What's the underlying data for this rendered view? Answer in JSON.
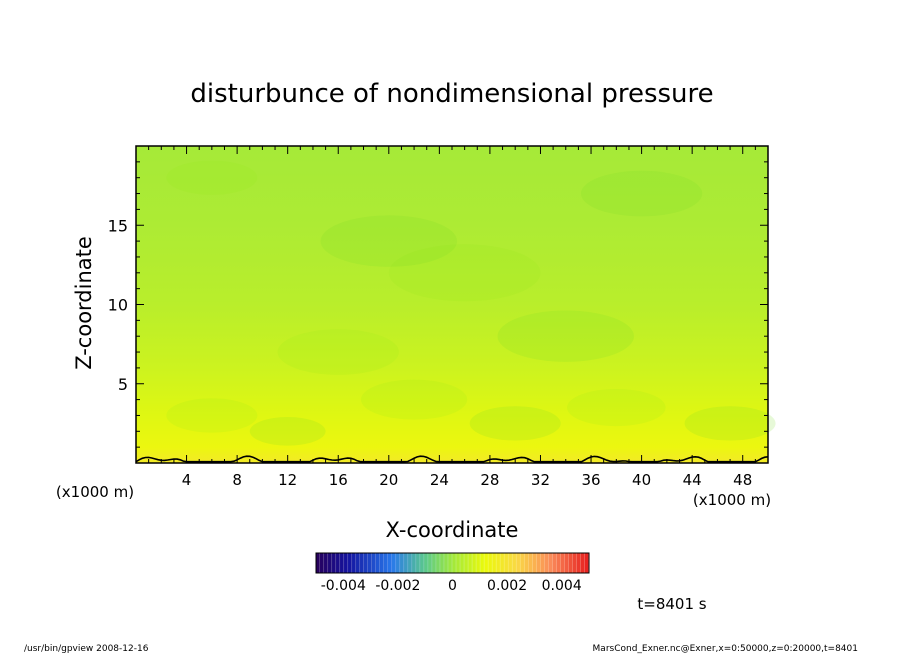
{
  "chart_data": {
    "type": "heatmap",
    "title": "disturbunce of nondimensional pressure",
    "xlabel": "X-coordinate",
    "ylabel": "Z-coordinate",
    "x_unit_left": "(x1000 m)",
    "x_unit_right": "(x1000 m)",
    "xlim": [
      0,
      50
    ],
    "ylim": [
      0,
      20
    ],
    "x_ticks": [
      "4",
      "8",
      "12",
      "16",
      "20",
      "24",
      "28",
      "32",
      "36",
      "40",
      "44",
      "48"
    ],
    "y_ticks": [
      "5",
      "10",
      "15"
    ],
    "x_tick_values": [
      4,
      8,
      12,
      16,
      20,
      24,
      28,
      32,
      36,
      40,
      44,
      48
    ],
    "y_tick_values": [
      5,
      10,
      15
    ],
    "field_profile": [
      {
        "z": 0,
        "value": 0.0018
      },
      {
        "z": 1,
        "value": 0.0013
      },
      {
        "z": 3,
        "value": 0.001
      },
      {
        "z": 6,
        "value": 0.0007
      },
      {
        "z": 10,
        "value": 0.0004
      },
      {
        "z": 15,
        "value": 0.0002
      },
      {
        "z": 20,
        "value": 0.0001
      }
    ],
    "zero_contour_z": 0.4,
    "colorbar": {
      "min": -0.005,
      "max": 0.005,
      "tick_labels": [
        "-0.004",
        "-0.002",
        "0",
        "0.002",
        "0.004"
      ],
      "tick_values": [
        -0.004,
        -0.002,
        0,
        0.002,
        0.004
      ]
    },
    "time_label": "t=8401 s"
  },
  "footer": {
    "left": "/usr/bin/gpview   2008-12-16",
    "right": "MarsCond_Exner.nc@Exner,x=0:50000,z=0:20000,t=8401"
  }
}
